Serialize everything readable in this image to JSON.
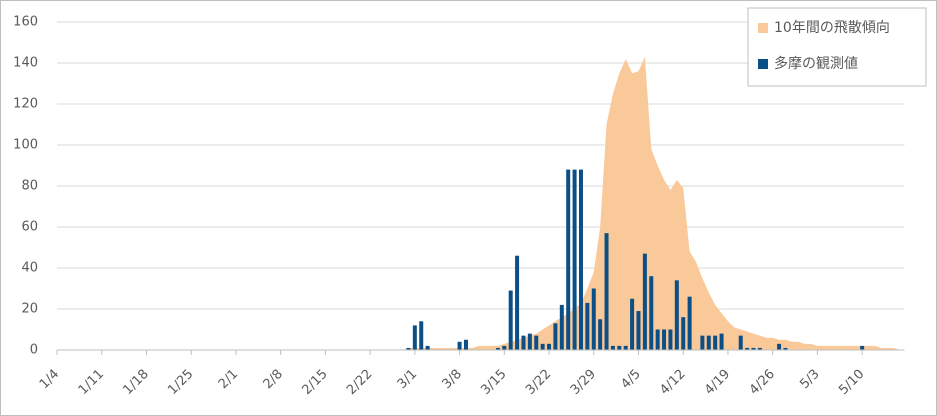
{
  "chart_data": {
    "type": "bar-area",
    "categories": [
      "1/4",
      null,
      null,
      null,
      null,
      null,
      null,
      "1/11",
      null,
      null,
      null,
      null,
      null,
      null,
      "1/18",
      null,
      null,
      null,
      null,
      null,
      null,
      "1/25",
      null,
      null,
      null,
      null,
      null,
      null,
      "2/1",
      null,
      null,
      null,
      null,
      null,
      null,
      "2/8",
      null,
      null,
      null,
      null,
      null,
      null,
      "2/15",
      null,
      null,
      null,
      null,
      null,
      null,
      "2/22",
      null,
      null,
      null,
      null,
      null,
      null,
      "3/1",
      null,
      null,
      null,
      null,
      null,
      null,
      "3/8",
      null,
      null,
      null,
      null,
      null,
      null,
      "3/15",
      null,
      null,
      null,
      null,
      null,
      null,
      "3/22",
      null,
      null,
      null,
      null,
      null,
      null,
      "3/29",
      null,
      null,
      null,
      null,
      null,
      null,
      "4/5",
      null,
      null,
      null,
      null,
      null,
      null,
      "4/12",
      null,
      null,
      null,
      null,
      null,
      null,
      "4/19",
      null,
      null,
      null,
      null,
      null,
      null,
      "4/26",
      null,
      null,
      null,
      null,
      null,
      null,
      "5/3",
      null,
      null,
      null,
      null,
      null,
      null,
      "5/10",
      null,
      null,
      null,
      null,
      null,
      null
    ],
    "series": [
      {
        "name": "10年間の飛散傾向",
        "color": "#f9c99a",
        "kind": "area",
        "values": [
          0,
          0,
          0,
          0,
          0,
          0,
          0,
          0,
          0,
          0,
          0,
          0,
          0,
          0,
          0,
          0,
          0,
          0,
          0,
          0,
          0,
          0,
          0,
          0,
          0,
          0,
          0,
          0,
          0,
          0,
          0,
          0,
          0,
          0,
          0,
          0,
          0,
          0,
          0,
          0,
          0,
          0,
          0,
          0,
          0,
          0,
          0,
          0,
          0,
          0,
          0,
          0,
          0,
          0,
          0,
          1,
          1,
          1,
          1,
          1,
          1,
          1,
          1,
          1,
          1,
          1,
          2,
          2,
          2,
          2,
          3,
          4,
          5,
          6,
          7,
          8,
          10,
          12,
          14,
          16,
          18,
          20,
          23,
          30,
          38,
          60,
          110,
          125,
          135,
          142,
          135,
          136,
          143,
          98,
          90,
          83,
          78,
          83,
          79,
          48,
          43,
          35,
          28,
          22,
          18,
          14,
          11,
          10,
          9,
          8,
          7,
          6,
          6,
          5,
          5,
          4,
          4,
          3,
          3,
          2,
          2,
          2,
          2,
          2,
          2,
          2,
          2,
          2,
          2,
          1,
          1,
          1,
          0
        ]
      },
      {
        "name": "多摩の観測値",
        "color": "#0b4f86",
        "kind": "bar",
        "values": [
          0,
          0,
          0,
          0,
          0,
          0,
          0,
          0,
          0,
          0,
          0,
          0,
          0,
          0,
          0,
          0,
          0,
          0,
          0,
          0,
          0,
          0,
          0,
          0,
          0,
          0,
          0,
          0,
          0,
          0,
          0,
          0,
          0,
          0,
          0,
          0,
          0,
          0,
          0,
          0,
          0,
          0,
          0,
          0,
          0,
          0,
          0,
          0,
          0,
          0,
          0,
          0,
          0,
          0,
          0,
          1,
          12,
          14,
          2,
          0,
          0,
          0,
          0,
          4,
          5,
          0,
          0,
          0,
          0,
          1,
          2,
          29,
          46,
          7,
          8,
          7,
          3,
          3,
          13,
          22,
          88,
          88,
          88,
          23,
          30,
          15,
          57,
          2,
          2,
          2,
          25,
          19,
          47,
          36,
          10,
          10,
          10,
          34,
          16,
          26,
          0,
          7,
          7,
          7,
          8,
          0,
          0,
          7,
          1,
          1,
          1,
          0,
          0,
          3,
          1,
          0,
          0,
          0,
          0,
          0,
          0,
          0,
          0,
          0,
          0,
          0,
          2,
          0,
          0,
          0,
          0,
          0,
          0
        ]
      }
    ],
    "ylim": [
      0,
      160
    ],
    "yticks": [
      0,
      20,
      40,
      60,
      80,
      100,
      120,
      140,
      160
    ],
    "grid": true,
    "legend": "top-right"
  }
}
